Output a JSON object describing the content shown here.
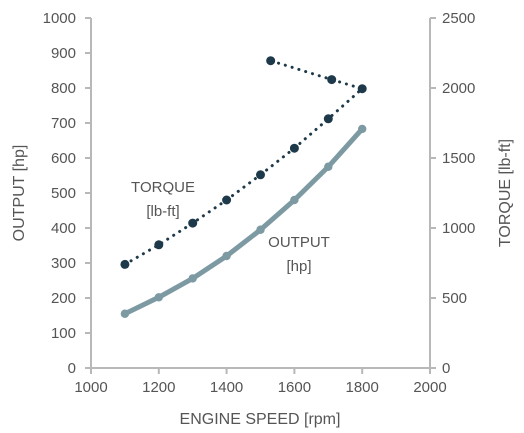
{
  "chart_data": {
    "type": "line",
    "xlabel": "ENGINE SPEED [rpm]",
    "ylabel": "OUTPUT [hp]",
    "ylabel_right": "TORQUE [lb-ft]",
    "xlim": [
      1000,
      2000
    ],
    "ylim": [
      0,
      1000
    ],
    "ylim_right": [
      0,
      2500
    ],
    "x_ticks": [
      "1000",
      "1200",
      "1400",
      "1600",
      "1800",
      "2000"
    ],
    "y_ticks": [
      "0",
      "100",
      "200",
      "300",
      "400",
      "500",
      "600",
      "700",
      "800",
      "900",
      "1000"
    ],
    "y_ticks_right": [
      "0",
      "500",
      "1000",
      "1500",
      "2000",
      "2500"
    ],
    "grid": false,
    "series": [
      {
        "name": "TORQUE [lb-ft]",
        "axis": "right",
        "style": "dotted",
        "color": "#1e3a4a",
        "x": [
          1100,
          1200,
          1300,
          1400,
          1500,
          1600,
          1700,
          1800,
          1710,
          1530
        ],
        "y": [
          740,
          880,
          1035,
          1200,
          1380,
          1570,
          1780,
          1995,
          2060,
          2195
        ]
      },
      {
        "name": "OUTPUT [hp]",
        "axis": "left",
        "style": "solid",
        "color": "#7d9aa3",
        "x": [
          1100,
          1200,
          1300,
          1400,
          1500,
          1600,
          1700,
          1800
        ],
        "y": [
          155,
          202,
          256,
          320,
          395,
          480,
          575,
          683
        ]
      }
    ],
    "annotations": [
      {
        "lines": [
          "TORQUE",
          "[lb-ft]"
        ],
        "series": "torque"
      },
      {
        "lines": [
          "OUTPUT",
          "[hp]"
        ],
        "series": "output"
      }
    ]
  }
}
